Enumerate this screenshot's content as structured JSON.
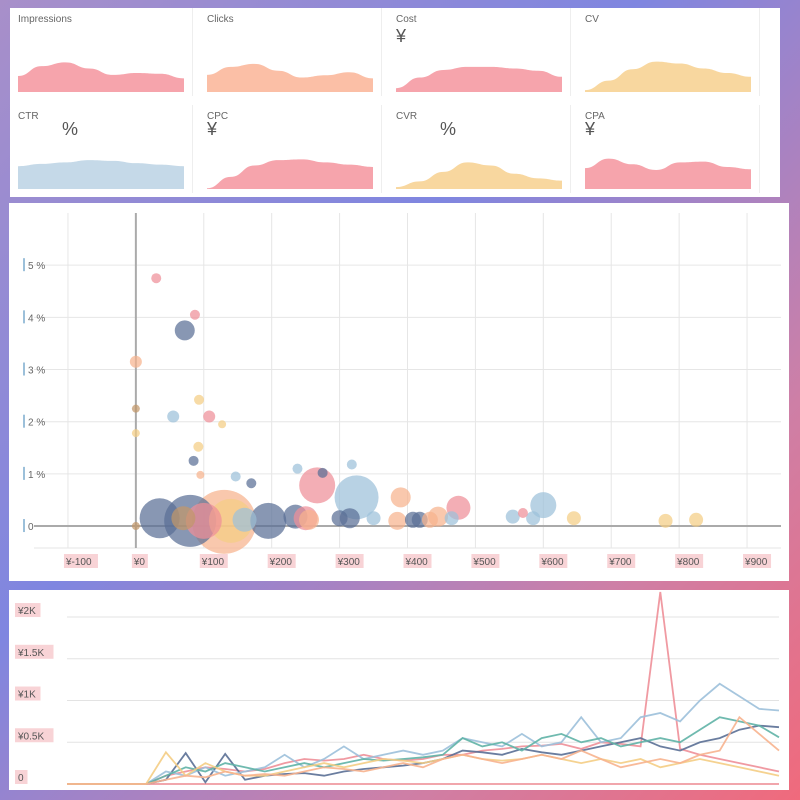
{
  "kpis": [
    {
      "label": "Impressions",
      "unit": "",
      "color": "#f6a4ac",
      "values": [
        0.42,
        0.68,
        0.78,
        0.62,
        0.45,
        0.5,
        0.48,
        0.36
      ]
    },
    {
      "label": "Clicks",
      "unit": "",
      "color": "#fbbfa6",
      "values": [
        0.45,
        0.66,
        0.74,
        0.56,
        0.38,
        0.44,
        0.52,
        0.36
      ]
    },
    {
      "label": "Cost",
      "unit": "¥",
      "color": "#f6a4ac",
      "values": [
        0.1,
        0.38,
        0.58,
        0.66,
        0.66,
        0.62,
        0.56,
        0.4
      ]
    },
    {
      "label": "CV",
      "unit": "",
      "color": "#f8d79f",
      "values": [
        0.05,
        0.3,
        0.6,
        0.8,
        0.75,
        0.62,
        0.5,
        0.4
      ]
    },
    {
      "label": "CTR",
      "unit": "%",
      "color": "#c5d9e8",
      "values": [
        0.6,
        0.66,
        0.7,
        0.76,
        0.74,
        0.68,
        0.64,
        0.6
      ]
    },
    {
      "label": "CPC",
      "unit": "¥",
      "color": "#f6a4ac",
      "values": [
        0.02,
        0.32,
        0.62,
        0.76,
        0.78,
        0.7,
        0.64,
        0.58
      ]
    },
    {
      "label": "CVR",
      "unit": "%",
      "color": "#f8d79f",
      "values": [
        0.05,
        0.2,
        0.45,
        0.7,
        0.62,
        0.4,
        0.28,
        0.22
      ]
    },
    {
      "label": "CPA",
      "unit": "¥",
      "color": "#f6a4ac",
      "values": [
        0.55,
        0.8,
        0.65,
        0.5,
        0.7,
        0.72,
        0.58,
        0.52
      ]
    }
  ],
  "colors": {
    "navy": "#5a6f95",
    "blue": "#9cc0da",
    "pink": "#ee8f98",
    "peach": "#f7b38e",
    "yellow": "#f4cd84",
    "brown": "#c2976a",
    "teal": "#5fb3a6"
  },
  "chart_data": [
    {
      "type": "scatter",
      "xlim": [
        -150,
        950
      ],
      "ylim": [
        -0.9,
        6.0
      ],
      "x_ticks": [
        -100,
        0,
        100,
        200,
        300,
        400,
        500,
        600,
        700,
        800,
        900
      ],
      "x_tick_labels": [
        "¥-100",
        "¥0",
        "¥100",
        "¥200",
        "¥300",
        "¥400",
        "¥500",
        "¥600",
        "¥700",
        "¥800",
        "¥900"
      ],
      "y_ticks": [
        0,
        1,
        2,
        3,
        4,
        5
      ],
      "y_tick_labels": [
        "0",
        "1 %",
        "2 %",
        "3 %",
        "4 %",
        "5 %"
      ],
      "points": [
        {
          "x": 30,
          "y": 4.75,
          "r": 5,
          "c": "pink"
        },
        {
          "x": 87,
          "y": 4.05,
          "r": 5,
          "c": "pink"
        },
        {
          "x": 72,
          "y": 3.75,
          "r": 10,
          "c": "navy"
        },
        {
          "x": 0,
          "y": 3.15,
          "r": 6,
          "c": "peach"
        },
        {
          "x": 93,
          "y": 2.42,
          "r": 5,
          "c": "yellow"
        },
        {
          "x": 0,
          "y": 2.25,
          "r": 4,
          "c": "brown"
        },
        {
          "x": 55,
          "y": 2.1,
          "r": 6,
          "c": "blue"
        },
        {
          "x": 108,
          "y": 2.1,
          "r": 6,
          "c": "pink"
        },
        {
          "x": 127,
          "y": 1.95,
          "r": 4,
          "c": "yellow"
        },
        {
          "x": 0,
          "y": 1.78,
          "r": 4,
          "c": "yellow"
        },
        {
          "x": 92,
          "y": 1.52,
          "r": 5,
          "c": "yellow"
        },
        {
          "x": 85,
          "y": 1.25,
          "r": 5,
          "c": "navy"
        },
        {
          "x": 95,
          "y": 0.98,
          "r": 4,
          "c": "peach"
        },
        {
          "x": 147,
          "y": 0.95,
          "r": 5,
          "c": "blue"
        },
        {
          "x": 170,
          "y": 0.82,
          "r": 5,
          "c": "navy"
        },
        {
          "x": 238,
          "y": 1.1,
          "r": 5,
          "c": "blue"
        },
        {
          "x": 275,
          "y": 1.02,
          "r": 5,
          "c": "navy"
        },
        {
          "x": 318,
          "y": 1.18,
          "r": 5,
          "c": "blue"
        },
        {
          "x": 267,
          "y": 0.78,
          "r": 18,
          "c": "pink"
        },
        {
          "x": 325,
          "y": 0.55,
          "r": 22,
          "c": "blue"
        },
        {
          "x": 390,
          "y": 0.55,
          "r": 10,
          "c": "peach"
        },
        {
          "x": 475,
          "y": 0.35,
          "r": 12,
          "c": "pink"
        },
        {
          "x": 600,
          "y": 0.4,
          "r": 13,
          "c": "blue"
        },
        {
          "x": 35,
          "y": 0.15,
          "r": 20,
          "c": "navy"
        },
        {
          "x": 80,
          "y": 0.1,
          "r": 26,
          "c": "navy"
        },
        {
          "x": 130,
          "y": 0.08,
          "r": 32,
          "c": "peach"
        },
        {
          "x": 100,
          "y": 0.1,
          "r": 18,
          "c": "pink"
        },
        {
          "x": 140,
          "y": 0.1,
          "r": 22,
          "c": "yellow"
        },
        {
          "x": 195,
          "y": 0.1,
          "r": 18,
          "c": "navy"
        },
        {
          "x": 235,
          "y": 0.18,
          "r": 12,
          "c": "navy"
        },
        {
          "x": 250,
          "y": 0.15,
          "r": 12,
          "c": "pink"
        },
        {
          "x": 70,
          "y": 0.15,
          "r": 12,
          "c": "brown"
        },
        {
          "x": 160,
          "y": 0.12,
          "r": 12,
          "c": "blue"
        },
        {
          "x": 255,
          "y": 0.12,
          "r": 10,
          "c": "peach"
        },
        {
          "x": 300,
          "y": 0.15,
          "r": 8,
          "c": "navy"
        },
        {
          "x": 315,
          "y": 0.15,
          "r": 10,
          "c": "navy"
        },
        {
          "x": 350,
          "y": 0.15,
          "r": 7,
          "c": "blue"
        },
        {
          "x": 385,
          "y": 0.1,
          "r": 9,
          "c": "peach"
        },
        {
          "x": 408,
          "y": 0.12,
          "r": 8,
          "c": "navy"
        },
        {
          "x": 418,
          "y": 0.12,
          "r": 8,
          "c": "navy"
        },
        {
          "x": 433,
          "y": 0.12,
          "r": 8,
          "c": "peach"
        },
        {
          "x": 445,
          "y": 0.18,
          "r": 10,
          "c": "peach"
        },
        {
          "x": 465,
          "y": 0.15,
          "r": 7,
          "c": "blue"
        },
        {
          "x": 555,
          "y": 0.18,
          "r": 7,
          "c": "blue"
        },
        {
          "x": 570,
          "y": 0.25,
          "r": 5,
          "c": "pink"
        },
        {
          "x": 585,
          "y": 0.15,
          "r": 7,
          "c": "blue"
        },
        {
          "x": 645,
          "y": 0.15,
          "r": 7,
          "c": "yellow"
        },
        {
          "x": 780,
          "y": 0.1,
          "r": 7,
          "c": "yellow"
        },
        {
          "x": 825,
          "y": 0.12,
          "r": 7,
          "c": "yellow"
        },
        {
          "x": 0,
          "y": 0.0,
          "r": 4,
          "c": "brown"
        }
      ]
    },
    {
      "type": "line",
      "x": [
        0,
        1,
        2,
        3,
        4,
        5,
        6,
        7,
        8,
        9,
        10,
        11,
        12,
        13,
        14,
        15,
        16,
        17,
        18,
        19,
        20,
        21,
        22,
        23,
        24,
        25,
        26,
        27,
        28,
        29,
        30,
        31,
        32,
        33,
        34,
        35,
        36
      ],
      "ylim": [
        0,
        2300
      ],
      "y_ticks": [
        0,
        500,
        1000,
        1500,
        2000
      ],
      "y_tick_labels": [
        "0",
        "¥0.5K",
        "¥1K",
        "¥1.5K",
        "¥2K"
      ],
      "series": [
        {
          "color": "pink",
          "values": [
            0,
            0,
            0,
            0,
            0,
            0,
            0,
            0,
            0,
            0,
            0,
            0,
            0,
            0,
            0,
            0,
            0,
            0,
            0,
            0,
            0,
            0,
            0,
            0,
            0,
            0,
            0,
            0,
            0,
            0,
            0,
            0,
            0,
            0,
            0,
            0,
            0
          ]
        },
        {
          "color": "pink",
          "values": [
            0,
            0,
            0,
            0,
            0,
            100,
            150,
            200,
            180,
            150,
            180,
            250,
            300,
            280,
            300,
            350,
            300,
            280,
            300,
            350,
            350,
            400,
            420,
            450,
            460,
            480,
            420,
            500,
            480,
            450,
            2300,
            420,
            350,
            300,
            250,
            200,
            150
          ]
        },
        {
          "color": "navy",
          "values": [
            0,
            0,
            0,
            0,
            0,
            50,
            370,
            20,
            360,
            50,
            100,
            120,
            130,
            100,
            150,
            180,
            200,
            220,
            250,
            300,
            400,
            380,
            350,
            420,
            380,
            350,
            400,
            450,
            500,
            550,
            450,
            400,
            500,
            550,
            650,
            700,
            680
          ]
        },
        {
          "color": "blue",
          "values": [
            0,
            0,
            0,
            0,
            0,
            150,
            100,
            200,
            100,
            150,
            200,
            350,
            200,
            300,
            450,
            300,
            350,
            400,
            350,
            400,
            550,
            500,
            450,
            600,
            450,
            500,
            800,
            500,
            550,
            800,
            850,
            750,
            1000,
            1200,
            1050,
            900,
            880
          ]
        },
        {
          "color": "teal",
          "values": [
            0,
            0,
            0,
            0,
            0,
            100,
            200,
            150,
            250,
            200,
            150,
            200,
            250,
            200,
            250,
            300,
            280,
            300,
            320,
            350,
            550,
            450,
            500,
            400,
            550,
            600,
            500,
            550,
            450,
            500,
            550,
            500,
            650,
            800,
            750,
            700,
            560
          ]
        },
        {
          "color": "yellow",
          "values": [
            0,
            0,
            0,
            0,
            0,
            380,
            100,
            250,
            150,
            100,
            100,
            150,
            200,
            250,
            200,
            250,
            300,
            280,
            250,
            300,
            350,
            300,
            280,
            300,
            350,
            300,
            250,
            300,
            250,
            300,
            200,
            250,
            300,
            250,
            200,
            150,
            100
          ]
        },
        {
          "color": "peach",
          "values": [
            0,
            0,
            0,
            0,
            0,
            50,
            100,
            80,
            150,
            100,
            120,
            100,
            150,
            200,
            180,
            150,
            200,
            250,
            200,
            300,
            350,
            300,
            250,
            300,
            350,
            300,
            400,
            300,
            200,
            250,
            300,
            250,
            350,
            400,
            800,
            600,
            400
          ]
        }
      ]
    }
  ]
}
